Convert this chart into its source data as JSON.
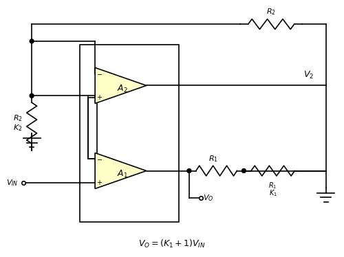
{
  "bg_color": "#ffffff",
  "line_color": "#000000",
  "op_amp_fill": "#ffffc8",
  "fig_width": 5.0,
  "fig_height": 3.74,
  "dpi": 100,
  "formula": "V_O = (K_1+1)V_{IN}",
  "labels": {
    "R2_left": "R_2",
    "K2_left": "K_2",
    "R2_top": "R_2",
    "V2": "V_2",
    "R1_mid": "R_1",
    "R1_right": "R_1",
    "K1_right": "K_1",
    "A2": "A_2",
    "A1": "A_1",
    "VIN": "V_{IN}",
    "VO": "V_O"
  }
}
